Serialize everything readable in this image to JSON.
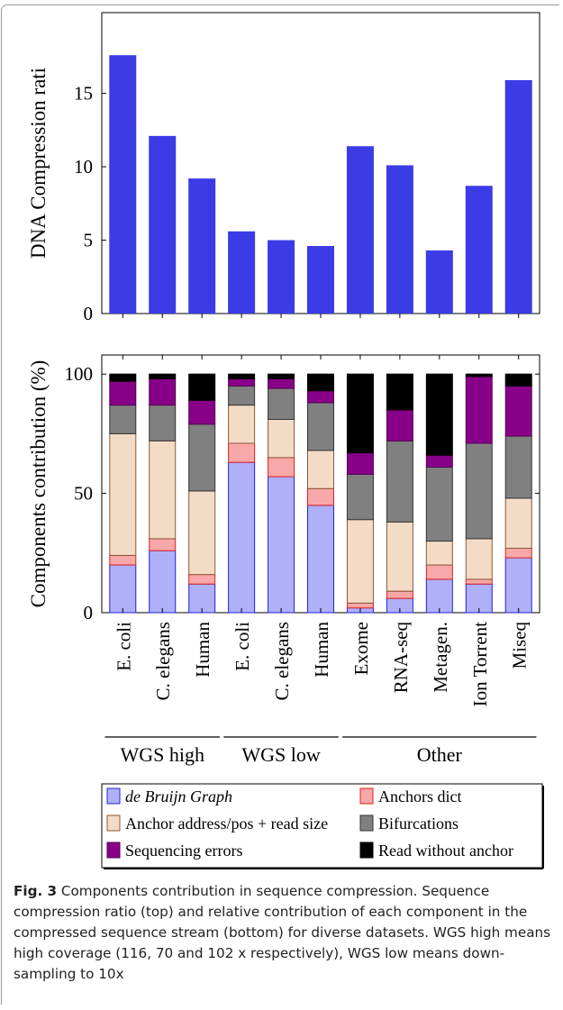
{
  "caption": {
    "label": "Fig. 3",
    "text": " Components contribution in sequence compression. Sequence compression ratio (top) and relative contribution of each component in the compressed sequence stream (bottom) for diverse datasets. WGS high means high coverage (116, 70 and 102 x respectively), WGS low means down-sampling to 10x"
  },
  "chart_data": [
    {
      "type": "bar",
      "ylabel": "DNA Compression rati",
      "ylim": [
        0,
        20.5
      ],
      "yticks": [
        0,
        5,
        10,
        15
      ],
      "categories": [
        "E. coli",
        "C. elegans",
        "Human",
        "E. coli",
        "C. elegans",
        "Human",
        "Exome",
        "RNA-seq",
        "Metagen.",
        "Ion Torrent",
        "Miseq"
      ],
      "values": [
        17.6,
        12.1,
        9.2,
        5.6,
        5.0,
        4.6,
        11.4,
        10.1,
        4.3,
        8.7,
        15.9
      ],
      "color": "#3b3ce6"
    },
    {
      "type": "bar",
      "stacked": true,
      "ylabel": "Components contribution (%)",
      "ylim": [
        0,
        108
      ],
      "yticks": [
        0,
        50,
        100
      ],
      "categories": [
        "E. coli",
        "C. elegans",
        "Human",
        "E. coli",
        "C. elegans",
        "Human",
        "Exome",
        "RNA-seq",
        "Metagen.",
        "Ion Torrent",
        "Miseq"
      ],
      "groups": [
        {
          "label": "WGS high",
          "start": 0,
          "end": 2
        },
        {
          "label": "WGS low",
          "start": 3,
          "end": 5
        },
        {
          "label": "Other",
          "start": 6,
          "end": 10
        }
      ],
      "series": [
        {
          "name": "de Bruijn Graph",
          "fill": "#b0b0f8",
          "stroke": "#2222dd",
          "values": [
            20,
            26,
            12,
            63,
            57,
            45,
            2,
            6,
            14,
            12,
            23
          ]
        },
        {
          "name": "Anchors dict",
          "fill": "#f8a8a8",
          "stroke": "#e02020",
          "values": [
            4,
            5,
            4,
            8,
            8,
            7,
            2,
            3,
            6,
            2,
            4
          ]
        },
        {
          "name": "Anchor address/pos + read size",
          "fill": "#f3dbc6",
          "stroke": "#8a5a3a",
          "values": [
            51,
            41,
            35,
            16,
            16,
            16,
            35,
            29,
            10,
            17,
            21
          ]
        },
        {
          "name": "Bifurcations",
          "fill": "#808080",
          "stroke": "#333333",
          "values": [
            12,
            15,
            28,
            8,
            13,
            20,
            19,
            34,
            31,
            40,
            26
          ]
        },
        {
          "name": "Sequencing errors",
          "fill": "#880088",
          "stroke": "#550055",
          "values": [
            10,
            11,
            10,
            3,
            4,
            5,
            9,
            13,
            5,
            28,
            21
          ]
        },
        {
          "name": "Read without anchor",
          "fill": "#000000",
          "stroke": "#000000",
          "values": [
            3,
            2,
            11,
            2,
            2,
            7,
            33,
            15,
            34,
            1,
            5
          ]
        }
      ],
      "legend": {
        "placement": "bottom",
        "entries": [
          {
            "name": "de Bruijn Graph",
            "italic": true
          },
          {
            "name": "Anchors dict"
          },
          {
            "name": "Anchor address/pos + read size"
          },
          {
            "name": "Bifurcations"
          },
          {
            "name": "Sequencing errors"
          },
          {
            "name": "Read without anchor"
          }
        ]
      }
    }
  ]
}
